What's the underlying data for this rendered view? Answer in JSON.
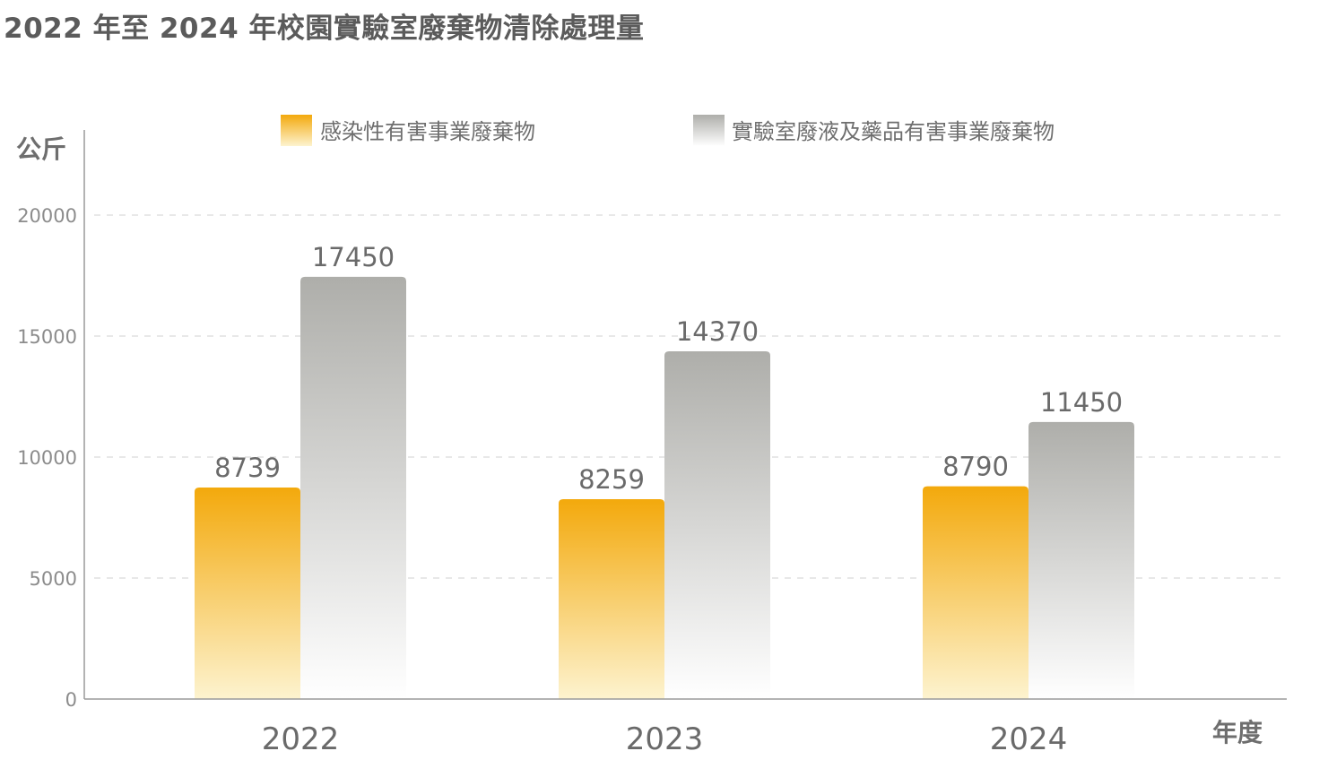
{
  "title": "2022 年至 2024 年校園實驗室廢棄物清除處理量",
  "colors": {
    "series1_top": "#f3a90c",
    "series1_bottom": "#fdf3cf",
    "series2_top": "#aeaeaa",
    "series2_bottom": "#ffffff",
    "grid": "#d9d9d9",
    "axis": "#9a9a9a"
  },
  "chart_data": {
    "type": "bar",
    "title": "2022 年至 2024 年校園實驗室廢棄物清除處理量",
    "xlabel": "年度",
    "ylabel": "公斤",
    "ylim": [
      0,
      21000
    ],
    "yticks": [
      0,
      5000,
      10000,
      15000,
      20000
    ],
    "grid": true,
    "legend_position": "top",
    "categories": [
      "2022",
      "2023",
      "2024"
    ],
    "series": [
      {
        "name": "感染性有害事業廢棄物",
        "values": [
          8739,
          8259,
          8790
        ]
      },
      {
        "name": "實驗室廢液及藥品有害事業廢棄物",
        "values": [
          17450,
          14370,
          11450
        ]
      }
    ]
  }
}
